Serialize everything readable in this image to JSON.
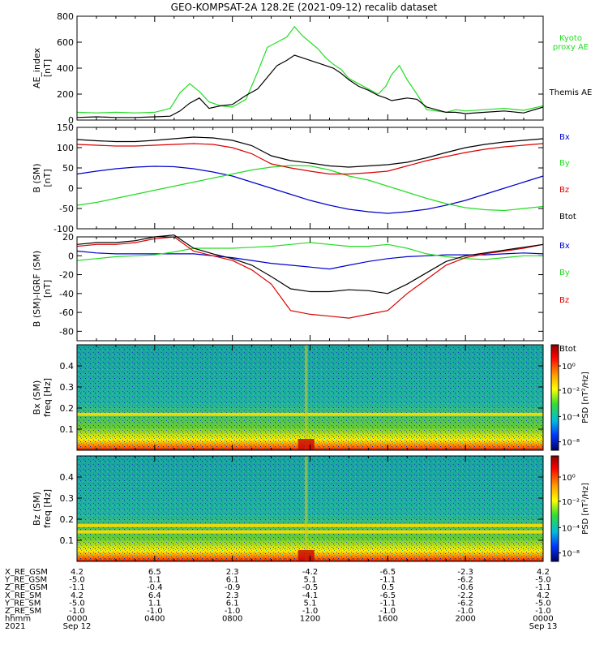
{
  "title": "GEO-KOMPSAT-2A 128.2E (2021-09-12) recalib dataset",
  "colors": {
    "black": "#000000",
    "green": "#22dd22",
    "red": "#dd0000",
    "blue": "#0000cc"
  },
  "chart_data": [
    {
      "panel": "ae",
      "type": "line",
      "ylabel": [
        "AE_index",
        "[nT]"
      ],
      "ylim": [
        0,
        800
      ],
      "yticks": [
        0,
        200,
        400,
        600,
        800
      ],
      "xlim": [
        0,
        24
      ],
      "series": [
        {
          "name": "Kyoto proxy AE",
          "color": "green",
          "x": [
            0,
            1,
            2,
            3,
            4,
            4.8,
            5.3,
            5.8,
            6.3,
            6.8,
            7.4,
            8.0,
            8.7,
            9.3,
            9.8,
            10.3,
            10.8,
            11.2,
            11.6,
            12.0,
            12.4,
            12.8,
            13.2,
            13.6,
            14.0,
            14.5,
            15.0,
            15.5,
            15.9,
            16.2,
            16.6,
            17.0,
            17.5,
            18.0,
            18.5,
            19.0,
            19.5,
            20,
            21,
            22,
            23,
            24
          ],
          "y": [
            60,
            55,
            60,
            55,
            60,
            90,
            210,
            280,
            220,
            140,
            110,
            100,
            160,
            370,
            560,
            600,
            640,
            720,
            650,
            600,
            550,
            480,
            430,
            390,
            320,
            280,
            240,
            200,
            260,
            350,
            420,
            310,
            200,
            80,
            70,
            60,
            80,
            70,
            80,
            90,
            75,
            110
          ]
        },
        {
          "name": "Themis AE",
          "color": "black",
          "x": [
            0,
            1,
            2,
            3,
            4,
            4.8,
            5.3,
            5.8,
            6.3,
            6.8,
            7.4,
            8.0,
            8.7,
            9.3,
            9.8,
            10.3,
            10.8,
            11.2,
            11.6,
            12.0,
            12.4,
            12.8,
            13.2,
            13.6,
            14.0,
            14.5,
            15.0,
            15.5,
            15.9,
            16.2,
            16.6,
            17.0,
            17.5,
            18.0,
            18.5,
            19.0,
            19.5,
            20,
            21,
            22,
            23,
            24
          ],
          "y": [
            20,
            25,
            20,
            20,
            25,
            30,
            70,
            130,
            170,
            90,
            110,
            120,
            190,
            240,
            330,
            420,
            460,
            500,
            480,
            460,
            440,
            420,
            400,
            360,
            310,
            260,
            230,
            190,
            170,
            150,
            160,
            170,
            160,
            100,
            80,
            60,
            60,
            50,
            60,
            70,
            55,
            100
          ]
        }
      ],
      "legend": [
        "Kyoto",
        "proxy AE",
        "Themis AE"
      ]
    },
    {
      "panel": "bsm",
      "type": "line",
      "ylabel": [
        "B (SM)",
        "[nT]"
      ],
      "ylim": [
        -100,
        150
      ],
      "yticks": [
        -100,
        -50,
        0,
        50,
        100,
        150
      ],
      "xlim": [
        0,
        24
      ],
      "series": [
        {
          "name": "Bx",
          "color": "blue",
          "x": [
            0,
            1,
            2,
            3,
            4,
            5,
            6,
            7,
            8,
            9,
            10,
            11,
            12,
            13,
            14,
            15,
            16,
            17,
            18,
            19,
            20,
            21,
            22,
            23,
            24
          ],
          "y": [
            35,
            42,
            48,
            52,
            54,
            53,
            48,
            40,
            30,
            15,
            0,
            -15,
            -30,
            -42,
            -52,
            -58,
            -62,
            -58,
            -52,
            -42,
            -30,
            -15,
            0,
            15,
            30
          ]
        },
        {
          "name": "By",
          "color": "green",
          "x": [
            0,
            1,
            2,
            3,
            4,
            5,
            6,
            7,
            8,
            9,
            10,
            11,
            12,
            13,
            14,
            15,
            16,
            17,
            18,
            19,
            20,
            21,
            22,
            23,
            24
          ],
          "y": [
            -42,
            -35,
            -25,
            -15,
            -5,
            5,
            15,
            25,
            35,
            45,
            52,
            56,
            55,
            45,
            30,
            20,
            5,
            -10,
            -25,
            -38,
            -48,
            -53,
            -55,
            -50,
            -45
          ]
        },
        {
          "name": "Bz",
          "color": "red",
          "x": [
            0,
            1,
            2,
            3,
            4,
            5,
            6,
            7,
            8,
            9,
            10,
            11,
            12,
            13,
            14,
            15,
            16,
            17,
            18,
            19,
            20,
            21,
            22,
            23,
            24
          ],
          "y": [
            108,
            106,
            104,
            104,
            106,
            108,
            110,
            108,
            100,
            85,
            60,
            50,
            42,
            35,
            35,
            38,
            42,
            55,
            68,
            78,
            88,
            96,
            102,
            106,
            110
          ]
        },
        {
          "name": "Btot",
          "color": "black",
          "x": [
            0,
            1,
            2,
            3,
            4,
            5,
            6,
            7,
            8,
            9,
            10,
            11,
            12,
            13,
            14,
            15,
            16,
            17,
            18,
            19,
            20,
            21,
            22,
            23,
            24
          ],
          "y": [
            120,
            117,
            115,
            115,
            118,
            122,
            126,
            124,
            118,
            105,
            80,
            68,
            62,
            55,
            52,
            55,
            58,
            64,
            75,
            88,
            100,
            108,
            114,
            118,
            122
          ]
        }
      ],
      "legend": [
        "Bx",
        "By",
        "Bz",
        "Btot"
      ]
    },
    {
      "panel": "bigrf",
      "type": "line",
      "ylabel": [
        "B (SM)-IGRF (SM)",
        "[nT]"
      ],
      "ylim": [
        -90,
        20
      ],
      "yticks": [
        -80,
        -60,
        -40,
        -20,
        0,
        20
      ],
      "xlim": [
        0,
        24
      ],
      "series": [
        {
          "name": "Bx",
          "color": "blue",
          "x": [
            0,
            1,
            2,
            3,
            4,
            5,
            6,
            7,
            8,
            9,
            10,
            11,
            12,
            13,
            14,
            15,
            16,
            17,
            18,
            19,
            20,
            21,
            22,
            23,
            24
          ],
          "y": [
            5,
            3,
            2,
            2,
            2,
            2,
            2,
            0,
            -2,
            -5,
            -8,
            -10,
            -12,
            -14,
            -10,
            -6,
            -3,
            -1,
            0,
            1,
            1,
            1,
            2,
            3,
            2
          ]
        },
        {
          "name": "By",
          "color": "green",
          "x": [
            0,
            1,
            2,
            3,
            4,
            5,
            6,
            7,
            8,
            9,
            10,
            11,
            12,
            13,
            14,
            15,
            16,
            17,
            18,
            19,
            20,
            21,
            22,
            23,
            24
          ],
          "y": [
            -5,
            -3,
            -1,
            0,
            1,
            4,
            8,
            8,
            8,
            9,
            10,
            12,
            14,
            12,
            10,
            10,
            12,
            8,
            2,
            -1,
            -3,
            -4,
            -2,
            0,
            0
          ]
        },
        {
          "name": "Bz",
          "color": "red",
          "x": [
            0,
            1,
            2,
            3,
            4,
            5,
            6,
            7,
            8,
            9,
            10,
            11,
            12,
            13,
            14,
            15,
            16,
            17,
            18,
            19,
            20,
            21,
            22,
            23,
            24
          ],
          "y": [
            10,
            12,
            12,
            14,
            18,
            20,
            5,
            0,
            -5,
            -15,
            -30,
            -58,
            -62,
            -64,
            -66,
            -62,
            -58,
            -40,
            -25,
            -10,
            -2,
            2,
            5,
            8,
            12
          ]
        },
        {
          "name": "Btot",
          "color": "black",
          "x": [
            0,
            1,
            2,
            3,
            4,
            5,
            6,
            7,
            8,
            9,
            10,
            11,
            12,
            13,
            14,
            15,
            16,
            17,
            18,
            19,
            20,
            21,
            22,
            23,
            24
          ],
          "y": [
            12,
            14,
            14,
            16,
            20,
            22,
            8,
            2,
            -3,
            -10,
            -22,
            -35,
            -38,
            -38,
            -36,
            -37,
            -40,
            -30,
            -18,
            -6,
            0,
            3,
            6,
            9,
            12
          ]
        }
      ],
      "legend": [
        "Bx",
        "By",
        "Bz",
        "Btot"
      ]
    },
    {
      "panel": "spec_bx",
      "type": "heatmap",
      "ylabel": [
        "Bx (SM)",
        "freq [Hz]"
      ],
      "ylim": [
        0,
        0.5
      ],
      "yticks": [
        0.1,
        0.2,
        0.3,
        0.4
      ],
      "colorbar": {
        "label": "PSD [nT²/Hz]",
        "ticks": [
          "10⁰",
          "10⁻²",
          "10⁻⁴",
          "10⁻⁸"
        ]
      },
      "features": {
        "steady_band_hz": 0.17,
        "time_spike_hour": 11.8
      }
    },
    {
      "panel": "spec_bz",
      "type": "heatmap",
      "ylabel": [
        "Bz (SM)",
        "freq [Hz]"
      ],
      "ylim": [
        0,
        0.5
      ],
      "yticks": [
        0.1,
        0.2,
        0.3,
        0.4
      ],
      "colorbar": {
        "label": "PSD [nT²/Hz]",
        "ticks": [
          "10⁰",
          "10⁻²",
          "10⁻⁴",
          "10⁻⁸"
        ]
      },
      "features": {
        "steady_band_hz": [
          0.14,
          0.17
        ],
        "time_spike_hour": 11.8
      }
    }
  ],
  "ephemeris": {
    "labels": [
      "X_RE_GSM",
      "Y_RE_GSM",
      "Z_RE_GSM",
      "X_RE_SM",
      "Y_RE_SM",
      "Z_RE_SM",
      "hhmm",
      "2021"
    ],
    "columns": [
      [
        "4.2",
        "-5.0",
        "-1.1",
        "4.2",
        "-5.0",
        "-1.0",
        "0000",
        "Sep 12"
      ],
      [
        "6.5",
        "1.1",
        "-0.4",
        "6.4",
        "1.1",
        "-1.0",
        "0400",
        ""
      ],
      [
        "2.3",
        "6.1",
        "-0.9",
        "2.3",
        "6.1",
        "-1.0",
        "0800",
        ""
      ],
      [
        "-4.2",
        "5.1",
        "-0.5",
        "-4.1",
        "5.1",
        "-1.0",
        "1200",
        ""
      ],
      [
        "-6.5",
        "-1.1",
        "0.5",
        "-6.5",
        "-1.1",
        "-1.0",
        "1600",
        ""
      ],
      [
        "-2.3",
        "-6.2",
        "-0.6",
        "-2.2",
        "-6.2",
        "-1.0",
        "2000",
        ""
      ],
      [
        "4.2",
        "-5.0",
        "-1.1",
        "4.2",
        "-5.0",
        "-1.0",
        "0000",
        "Sep 13"
      ]
    ]
  }
}
